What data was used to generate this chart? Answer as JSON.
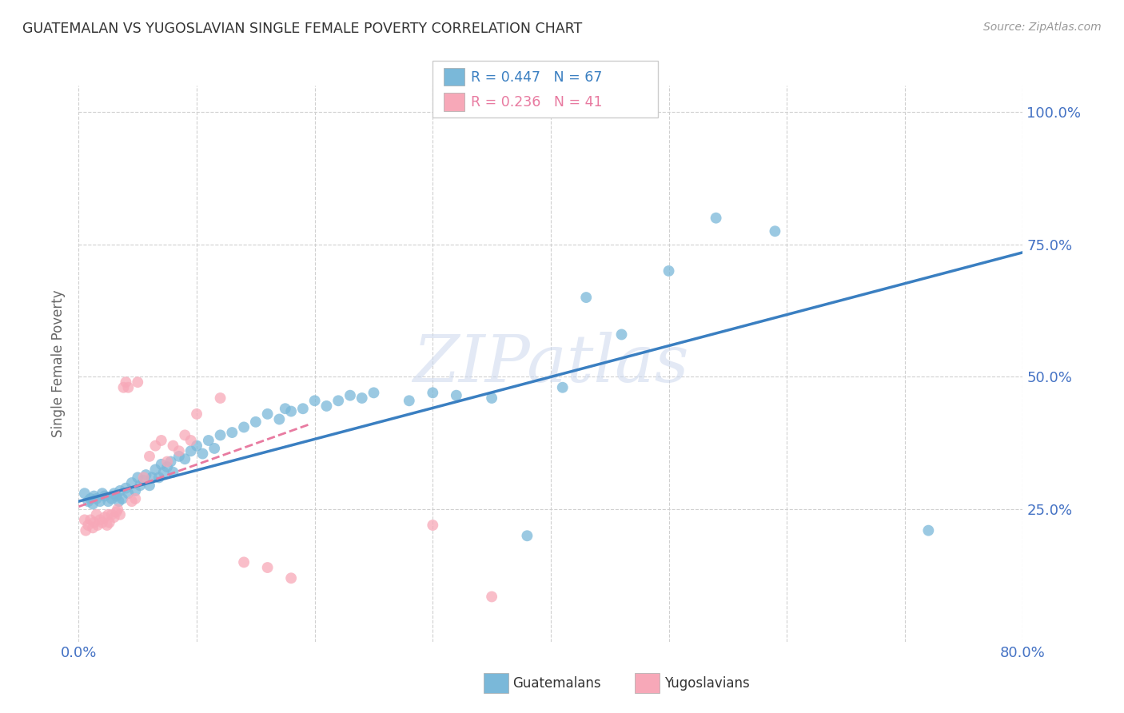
{
  "title": "GUATEMALAN VS YUGOSLAVIAN SINGLE FEMALE POVERTY CORRELATION CHART",
  "source": "Source: ZipAtlas.com",
  "ylabel": "Single Female Poverty",
  "ytick_labels": [
    "100.0%",
    "75.0%",
    "50.0%",
    "25.0%"
  ],
  "ytick_values": [
    1.0,
    0.75,
    0.5,
    0.25
  ],
  "xlim": [
    0.0,
    0.8
  ],
  "ylim": [
    0.0,
    1.05
  ],
  "legend_blue_r": "0.447",
  "legend_blue_n": "67",
  "legend_pink_r": "0.236",
  "legend_pink_n": "41",
  "blue_color": "#7ab8d9",
  "pink_color": "#f7a8b8",
  "blue_line_color": "#3a7fc1",
  "pink_line_color": "#e87aa0",
  "watermark": "ZIPatlas",
  "guatemalan_x": [
    0.005,
    0.008,
    0.01,
    0.012,
    0.013,
    0.015,
    0.018,
    0.02,
    0.022,
    0.025,
    0.028,
    0.03,
    0.032,
    0.034,
    0.035,
    0.037,
    0.04,
    0.042,
    0.045,
    0.048,
    0.05,
    0.052,
    0.055,
    0.057,
    0.06,
    0.062,
    0.065,
    0.068,
    0.07,
    0.072,
    0.075,
    0.078,
    0.08,
    0.085,
    0.09,
    0.095,
    0.1,
    0.105,
    0.11,
    0.115,
    0.12,
    0.13,
    0.14,
    0.15,
    0.16,
    0.17,
    0.175,
    0.18,
    0.19,
    0.2,
    0.21,
    0.22,
    0.23,
    0.24,
    0.25,
    0.28,
    0.3,
    0.32,
    0.35,
    0.38,
    0.41,
    0.43,
    0.46,
    0.5,
    0.54,
    0.59,
    0.72
  ],
  "guatemalan_y": [
    0.28,
    0.265,
    0.27,
    0.26,
    0.275,
    0.27,
    0.265,
    0.28,
    0.275,
    0.265,
    0.27,
    0.28,
    0.275,
    0.265,
    0.285,
    0.27,
    0.29,
    0.28,
    0.3,
    0.285,
    0.31,
    0.295,
    0.305,
    0.315,
    0.295,
    0.31,
    0.325,
    0.31,
    0.335,
    0.32,
    0.33,
    0.34,
    0.32,
    0.35,
    0.345,
    0.36,
    0.37,
    0.355,
    0.38,
    0.365,
    0.39,
    0.395,
    0.405,
    0.415,
    0.43,
    0.42,
    0.44,
    0.435,
    0.44,
    0.455,
    0.445,
    0.455,
    0.465,
    0.46,
    0.47,
    0.455,
    0.47,
    0.465,
    0.46,
    0.2,
    0.48,
    0.65,
    0.58,
    0.7,
    0.8,
    0.775,
    0.21
  ],
  "yugoslavian_x": [
    0.005,
    0.006,
    0.008,
    0.01,
    0.012,
    0.013,
    0.015,
    0.016,
    0.018,
    0.02,
    0.022,
    0.024,
    0.025,
    0.026,
    0.028,
    0.03,
    0.032,
    0.033,
    0.035,
    0.038,
    0.04,
    0.042,
    0.045,
    0.048,
    0.05,
    0.055,
    0.06,
    0.065,
    0.07,
    0.075,
    0.08,
    0.085,
    0.09,
    0.095,
    0.1,
    0.12,
    0.14,
    0.16,
    0.18,
    0.3,
    0.35
  ],
  "yugoslavian_y": [
    0.23,
    0.21,
    0.22,
    0.23,
    0.215,
    0.225,
    0.24,
    0.22,
    0.23,
    0.225,
    0.235,
    0.22,
    0.24,
    0.225,
    0.24,
    0.235,
    0.245,
    0.25,
    0.24,
    0.48,
    0.49,
    0.48,
    0.265,
    0.27,
    0.49,
    0.31,
    0.35,
    0.37,
    0.38,
    0.34,
    0.37,
    0.36,
    0.39,
    0.38,
    0.43,
    0.46,
    0.15,
    0.14,
    0.12,
    0.22,
    0.085
  ],
  "blue_trend_x": [
    0.0,
    0.8
  ],
  "blue_trend_y": [
    0.265,
    0.735
  ],
  "pink_trend_x": [
    0.0,
    0.195
  ],
  "pink_trend_y": [
    0.255,
    0.41
  ],
  "grid_color": "#d0d0d0",
  "grid_linestyle": "--",
  "background_color": "#ffffff",
  "title_fontsize": 13,
  "axis_label_color": "#4472c4",
  "ylabel_color": "#666666",
  "ylabel_fontsize": 12
}
